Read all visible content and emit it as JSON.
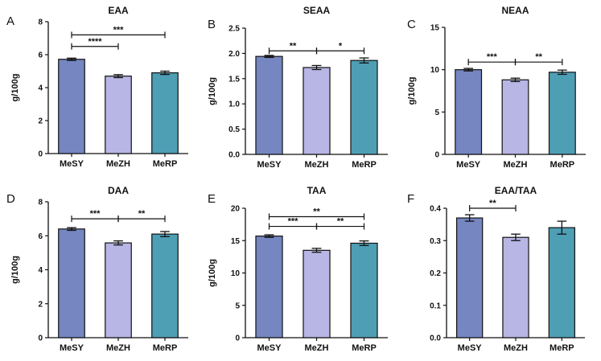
{
  "figure": {
    "colors": {
      "MeSY": "#7586C1",
      "MeZH": "#B7B6E4",
      "MeRP": "#4E9EB4"
    }
  },
  "chart_data": [
    {
      "panel": "A",
      "type": "bar",
      "title": "EAA",
      "ylabel": "g/100g",
      "categories": [
        "MeSY",
        "MeZH",
        "MeRP"
      ],
      "values": [
        5.72,
        4.7,
        4.9
      ],
      "errors": [
        0.07,
        0.09,
        0.1
      ],
      "ylim": [
        0,
        8
      ],
      "yticks": [
        "0",
        "2",
        "4",
        "6",
        "8"
      ],
      "significance": [
        {
          "from": 0,
          "to": 2,
          "y": 7.2,
          "label": "***"
        },
        {
          "from": 0,
          "to": 1,
          "y": 6.5,
          "label": "****"
        }
      ]
    },
    {
      "panel": "B",
      "type": "bar",
      "title": "SEAA",
      "ylabel": "g/100g",
      "categories": [
        "MeSY",
        "MeZH",
        "MeRP"
      ],
      "values": [
        1.94,
        1.72,
        1.86
      ],
      "errors": [
        0.02,
        0.04,
        0.05
      ],
      "ylim": [
        0,
        2.5
      ],
      "yticks": [
        "0.0",
        "0.5",
        "1.0",
        "1.5",
        "2.0",
        "2.5"
      ],
      "significance": [
        {
          "from": 0,
          "to": 1,
          "y": 2.05,
          "label": "**"
        },
        {
          "from": 1,
          "to": 2,
          "y": 2.05,
          "label": "*"
        }
      ]
    },
    {
      "panel": "C",
      "type": "bar",
      "title": "NEAA",
      "ylabel": "g/100g",
      "categories": [
        "MeSY",
        "MeZH",
        "MeRP"
      ],
      "values": [
        10.0,
        8.8,
        9.7
      ],
      "errors": [
        0.15,
        0.2,
        0.25
      ],
      "ylim": [
        0,
        15
      ],
      "yticks": [
        "0",
        "5",
        "10",
        "15"
      ],
      "significance": [
        {
          "from": 0,
          "to": 1,
          "y": 10.9,
          "label": "***"
        },
        {
          "from": 1,
          "to": 2,
          "y": 10.9,
          "label": "**"
        }
      ]
    },
    {
      "panel": "D",
      "type": "bar",
      "title": "DAA",
      "ylabel": "g/100g",
      "categories": [
        "MeSY",
        "MeZH",
        "MeRP"
      ],
      "values": [
        6.4,
        5.58,
        6.1
      ],
      "errors": [
        0.08,
        0.12,
        0.15
      ],
      "ylim": [
        0,
        8
      ],
      "yticks": [
        "0",
        "2",
        "4",
        "6",
        "8"
      ],
      "significance": [
        {
          "from": 0,
          "to": 1,
          "y": 7.0,
          "label": "***"
        },
        {
          "from": 1,
          "to": 2,
          "y": 7.0,
          "label": "**"
        }
      ]
    },
    {
      "panel": "E",
      "type": "bar",
      "title": "TAA",
      "ylabel": "g/100g",
      "categories": [
        "MeSY",
        "MeZH",
        "MeRP"
      ],
      "values": [
        15.7,
        13.5,
        14.6
      ],
      "errors": [
        0.2,
        0.3,
        0.35
      ],
      "ylim": [
        0,
        20
      ],
      "yticks": [
        "0",
        "5",
        "10",
        "15",
        "20"
      ],
      "significance": [
        {
          "from": 0,
          "to": 2,
          "y": 18.7,
          "label": "**"
        },
        {
          "from": 0,
          "to": 1,
          "y": 17.2,
          "label": "***"
        },
        {
          "from": 1,
          "to": 2,
          "y": 17.2,
          "label": "**"
        }
      ]
    },
    {
      "panel": "F",
      "type": "bar",
      "title": "EAA/TAA",
      "ylabel": "",
      "categories": [
        "MeSY",
        "MeZH",
        "MeRP"
      ],
      "values": [
        0.37,
        0.31,
        0.34
      ],
      "errors": [
        0.01,
        0.01,
        0.02
      ],
      "ylim": [
        0,
        0.4
      ],
      "yticks": [
        "0.0",
        "0.1",
        "0.2",
        "0.3",
        "0.4"
      ],
      "significance": [
        {
          "from": 0,
          "to": 1,
          "y": 0.4,
          "label": "**"
        }
      ]
    }
  ]
}
